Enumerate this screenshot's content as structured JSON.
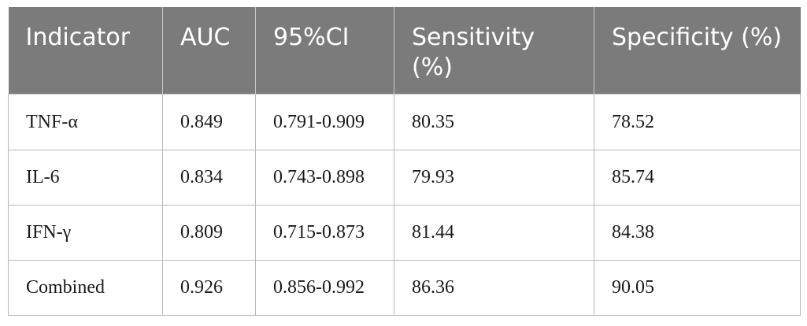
{
  "table": {
    "headers": [
      "Indicator",
      "AUC",
      "95%CI",
      "Sensitivity (%)",
      "Specificity (%)"
    ],
    "rows": [
      [
        "TNF-α",
        "0.849",
        "0.791-0.909",
        "80.35",
        "78.52"
      ],
      [
        "IL-6",
        "0.834",
        "0.743-0.898",
        "79.93",
        "85.74"
      ],
      [
        "IFN-γ",
        "0.809",
        "0.715-0.873",
        "81.44",
        "84.38"
      ],
      [
        "Combined",
        "0.926",
        "0.856-0.992",
        "86.36",
        "90.05"
      ]
    ]
  },
  "colors": {
    "header_bg": "#7a7b7a",
    "header_text": "#ffffff",
    "border": "#b8b8b8"
  }
}
